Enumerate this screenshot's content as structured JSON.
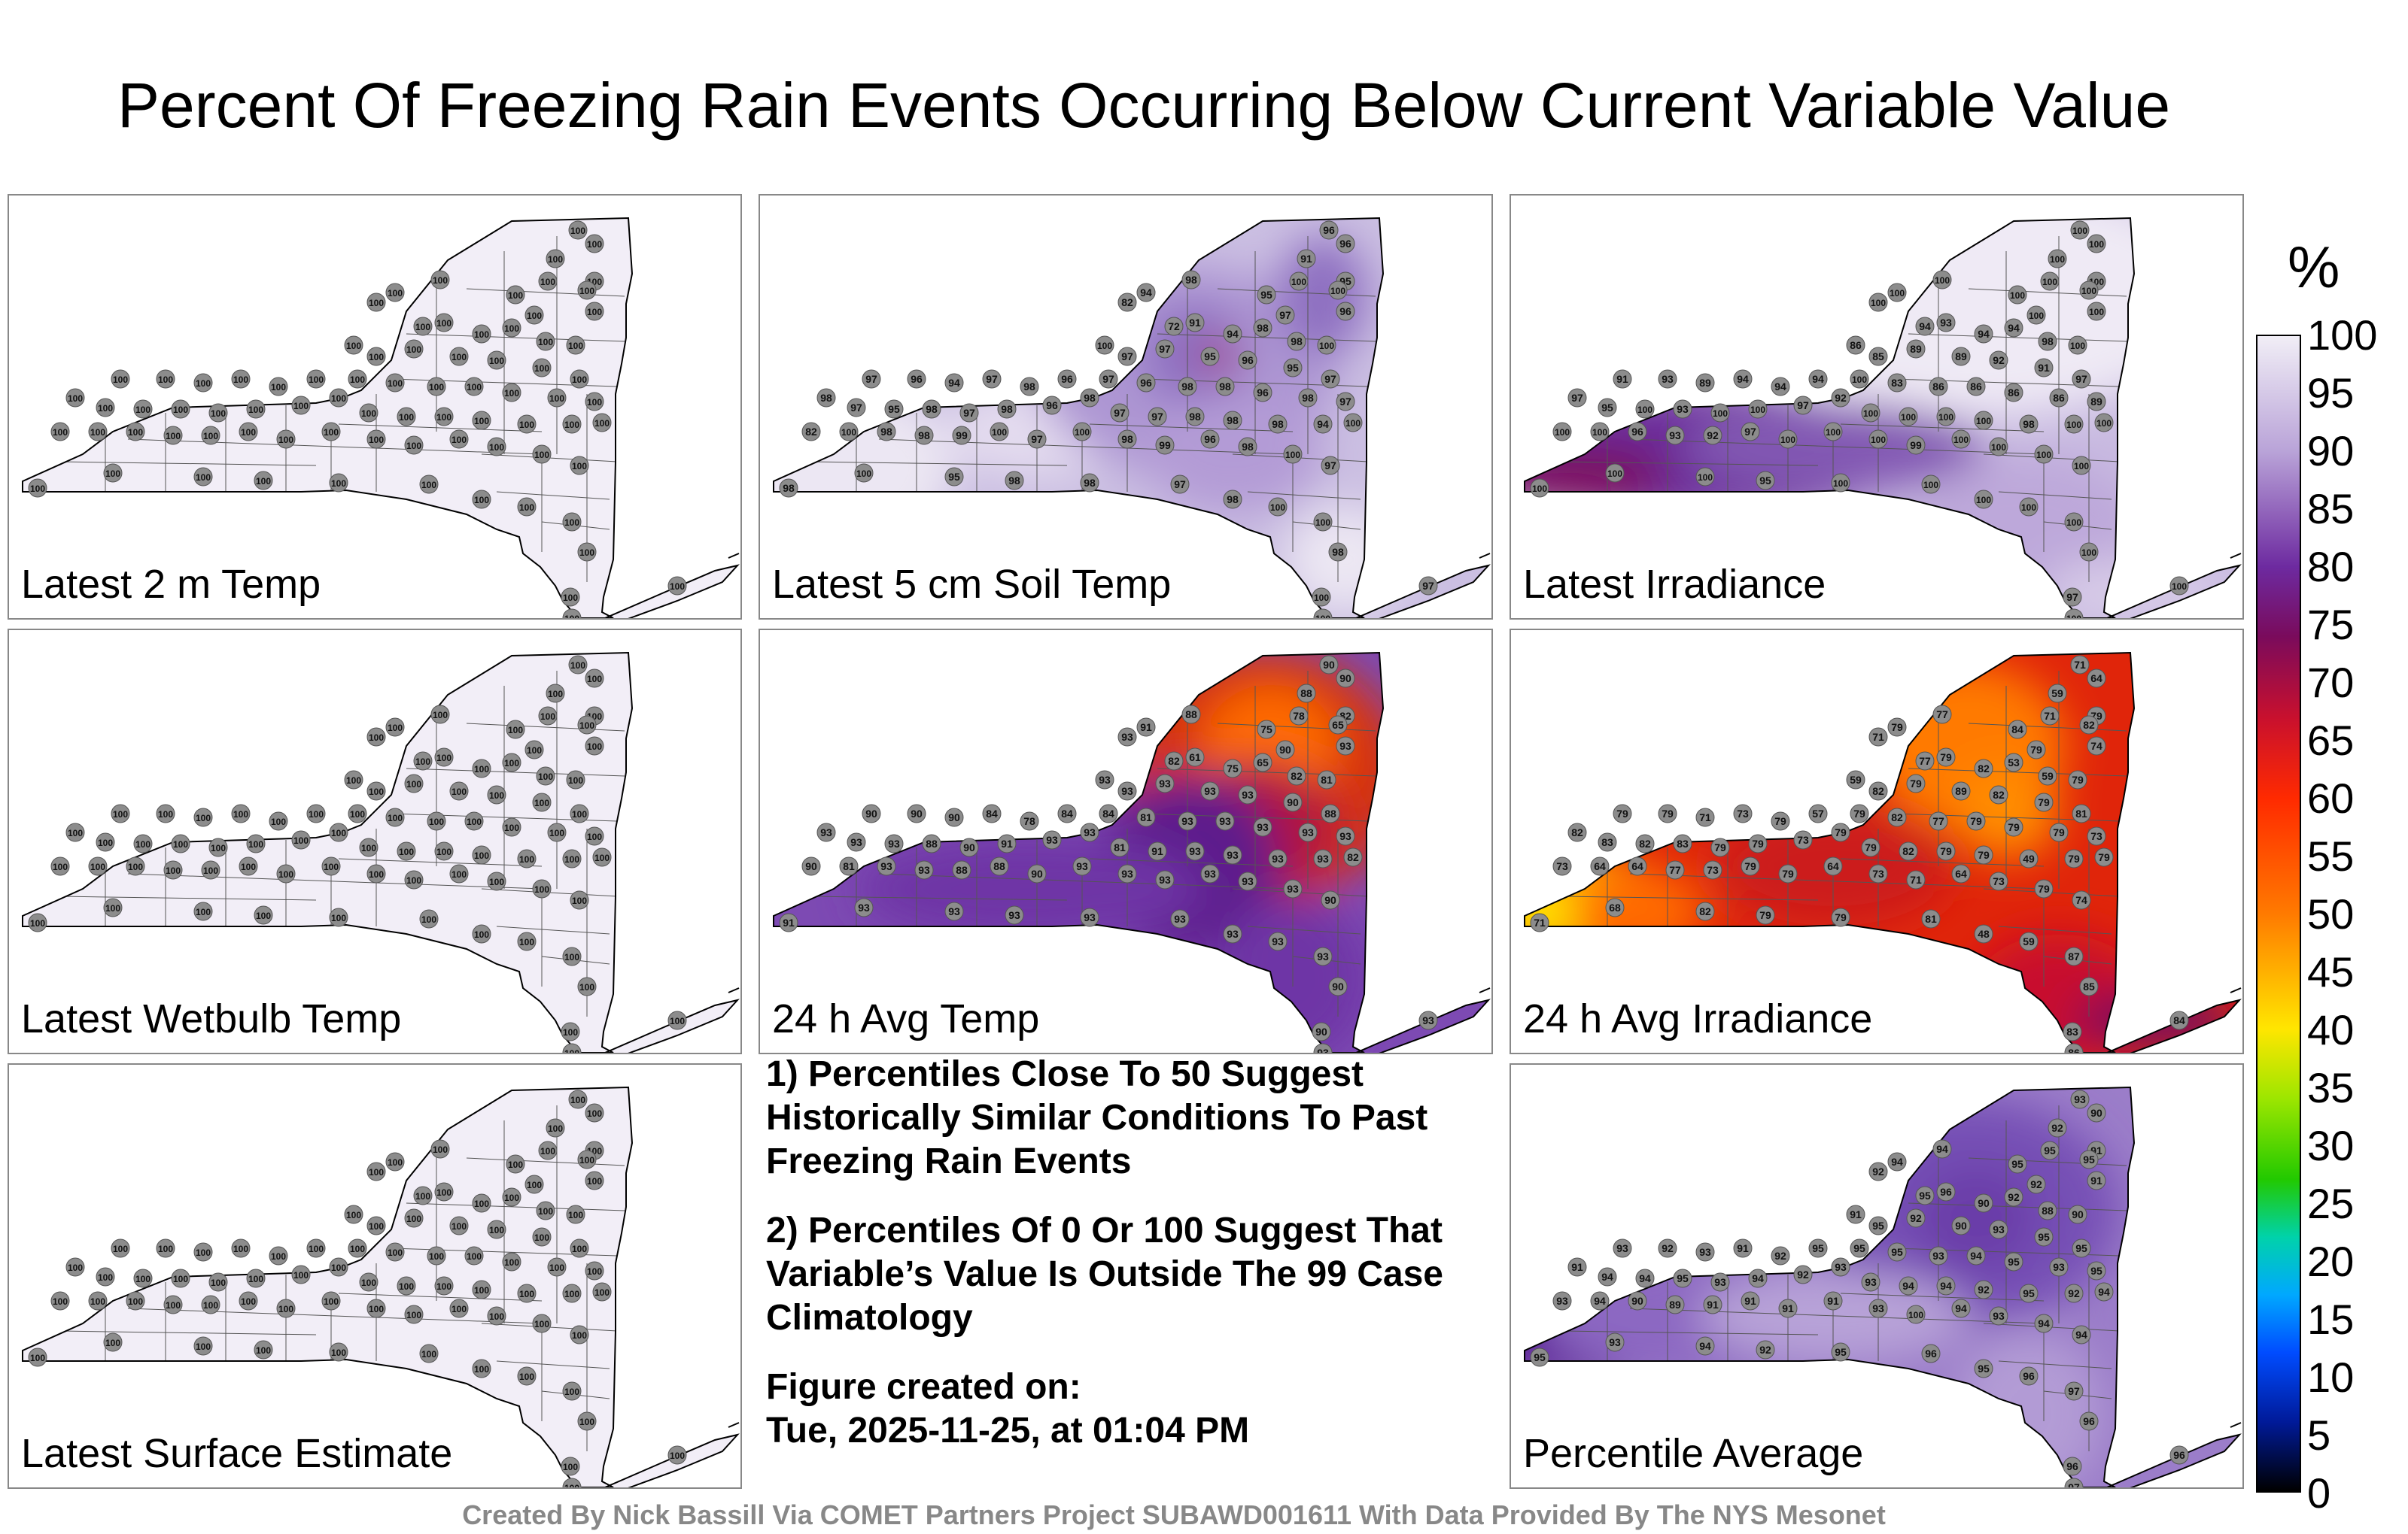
{
  "title": "Percent Of Freezing Rain Events Occurring Below Current Variable Value",
  "panels": [
    {
      "label": "Latest 2 m Temp",
      "scheme": "white",
      "values": [
        100,
        100,
        100,
        100,
        100,
        100,
        100,
        100,
        100,
        100,
        100,
        100,
        100,
        100,
        100,
        100,
        100,
        100,
        100,
        100,
        100,
        100,
        100,
        100,
        100,
        100,
        100,
        100,
        100,
        100,
        100,
        100,
        100,
        100,
        100,
        100,
        100,
        100,
        100,
        100,
        100,
        100,
        100,
        100,
        100,
        100,
        100,
        100,
        100,
        100,
        100,
        100,
        100,
        100,
        100,
        100,
        100,
        100,
        100,
        100,
        100,
        100,
        100,
        100,
        100,
        100,
        100,
        100,
        100,
        100,
        100,
        100,
        100,
        100,
        100,
        100,
        100,
        100,
        100,
        100
      ]
    },
    {
      "label": "Latest 5 cm Soil Temp",
      "scheme": "soil",
      "values": [
        96,
        96,
        91,
        95,
        82,
        94,
        98,
        95,
        100,
        100,
        96,
        97,
        72,
        91,
        94,
        98,
        98,
        100,
        100,
        97,
        97,
        95,
        96,
        95,
        97,
        96,
        97,
        96,
        98,
        98,
        96,
        98,
        97,
        97,
        96,
        94,
        97,
        98,
        96,
        98,
        98,
        97,
        95,
        98,
        97,
        98,
        97,
        97,
        98,
        98,
        98,
        94,
        100,
        82,
        100,
        98,
        98,
        99,
        100,
        97,
        100,
        98,
        99,
        96,
        98,
        100,
        97,
        98,
        100,
        95,
        98,
        98,
        97,
        98,
        100,
        100,
        98,
        100,
        100,
        97
      ]
    },
    {
      "label": "Latest Irradiance",
      "scheme": "irr",
      "values": [
        100,
        100,
        100,
        100,
        100,
        100,
        100,
        100,
        100,
        100,
        100,
        100,
        94,
        93,
        94,
        94,
        98,
        100,
        86,
        85,
        89,
        89,
        92,
        91,
        97,
        94,
        100,
        83,
        86,
        86,
        86,
        86,
        89,
        91,
        93,
        89,
        94,
        94,
        97,
        92,
        97,
        95,
        100,
        93,
        100,
        100,
        100,
        100,
        100,
        100,
        98,
        100,
        100,
        100,
        100,
        96,
        93,
        92,
        97,
        100,
        100,
        100,
        99,
        100,
        100,
        100,
        100,
        100,
        100,
        100,
        95,
        100,
        100,
        100,
        100,
        100,
        100,
        97,
        100,
        100
      ]
    },
    {
      "label": "Latest Wetbulb Temp",
      "scheme": "white",
      "values": [
        100,
        100,
        100,
        100,
        100,
        100,
        100,
        100,
        100,
        100,
        100,
        100,
        100,
        100,
        100,
        100,
        100,
        100,
        100,
        100,
        100,
        100,
        100,
        100,
        100,
        100,
        100,
        100,
        100,
        100,
        100,
        100,
        100,
        100,
        100,
        100,
        100,
        100,
        100,
        100,
        100,
        100,
        100,
        100,
        100,
        100,
        100,
        100,
        100,
        100,
        100,
        100,
        100,
        100,
        100,
        100,
        100,
        100,
        100,
        100,
        100,
        100,
        100,
        100,
        100,
        100,
        100,
        100,
        100,
        100,
        100,
        100,
        100,
        100,
        100,
        100,
        100,
        100,
        100,
        100
      ]
    },
    {
      "label": "24 h Avg Temp",
      "scheme": "avgt",
      "values": [
        90,
        90,
        88,
        82,
        93,
        91,
        88,
        75,
        78,
        65,
        93,
        90,
        82,
        61,
        75,
        65,
        82,
        81,
        93,
        93,
        93,
        93,
        93,
        90,
        88,
        84,
        84,
        81,
        93,
        93,
        93,
        93,
        93,
        90,
        90,
        90,
        84,
        78,
        93,
        93,
        93,
        93,
        93,
        88,
        90,
        91,
        81,
        91,
        93,
        93,
        93,
        93,
        82,
        90,
        81,
        93,
        93,
        88,
        88,
        90,
        93,
        93,
        93,
        93,
        93,
        93,
        90,
        91,
        93,
        93,
        93,
        93,
        93,
        93,
        93,
        93,
        90,
        90,
        93,
        93
      ]
    },
    {
      "label": "24 h Avg Irradiance",
      "scheme": "avgi",
      "values": [
        71,
        64,
        59,
        79,
        71,
        79,
        77,
        84,
        71,
        82,
        74,
        79,
        77,
        79,
        82,
        53,
        59,
        79,
        59,
        82,
        79,
        89,
        82,
        79,
        81,
        57,
        79,
        82,
        77,
        79,
        79,
        79,
        73,
        79,
        79,
        71,
        73,
        79,
        73,
        79,
        82,
        83,
        82,
        83,
        79,
        79,
        79,
        82,
        79,
        79,
        49,
        79,
        79,
        73,
        64,
        64,
        77,
        73,
        79,
        79,
        64,
        73,
        71,
        64,
        73,
        79,
        74,
        71,
        68,
        82,
        79,
        79,
        81,
        48,
        59,
        87,
        85,
        83,
        86,
        84
      ]
    },
    {
      "label": "Percentile Average",
      "scheme": "avg",
      "values": [
        93,
        90,
        92,
        91,
        92,
        94,
        94,
        95,
        95,
        95,
        91,
        92,
        95,
        96,
        90,
        92,
        88,
        90,
        91,
        95,
        92,
        90,
        93,
        95,
        95,
        95,
        95,
        95,
        93,
        94,
        95,
        93,
        95,
        93,
        92,
        93,
        91,
        92,
        92,
        93,
        91,
        94,
        94,
        95,
        93,
        94,
        93,
        94,
        94,
        92,
        95,
        92,
        94,
        93,
        94,
        90,
        89,
        91,
        91,
        91,
        91,
        93,
        100,
        94,
        93,
        94,
        94,
        95,
        93,
        94,
        92,
        95,
        96,
        95,
        96,
        97,
        96,
        96,
        97,
        96
      ]
    },
    {
      "label": "Latest Surface Estimate",
      "scheme": "white",
      "values": [
        100,
        100,
        100,
        100,
        100,
        100,
        100,
        100,
        100,
        100,
        100,
        100,
        100,
        100,
        100,
        100,
        100,
        100,
        100,
        100,
        100,
        100,
        100,
        100,
        100,
        100,
        100,
        100,
        100,
        100,
        100,
        100,
        100,
        100,
        100,
        100,
        100,
        100,
        100,
        100,
        100,
        100,
        100,
        100,
        100,
        100,
        100,
        100,
        100,
        100,
        100,
        100,
        100,
        100,
        100,
        100,
        100,
        100,
        100,
        100,
        100,
        100,
        100,
        100,
        100,
        100,
        100,
        100,
        100,
        100,
        100,
        100,
        100,
        100,
        100,
        100,
        100,
        100,
        100,
        100
      ]
    }
  ],
  "notes": {
    "n1": "1) Percentiles Close To 50 Suggest Historically Similar Conditions To Past Freezing Rain Events",
    "n2": "2) Percentiles Of 0 Or 100 Suggest That Variable’s Value Is Outside The 99 Case Climatology",
    "n3a": "Figure created on:",
    "n3b": "Tue, 2025-11-25, at 01:04 PM"
  },
  "colorbar": {
    "unit": "%",
    "ticks": [
      "100",
      "95",
      "90",
      "85",
      "80",
      "75",
      "70",
      "65",
      "60",
      "55",
      "50",
      "45",
      "40",
      "35",
      "30",
      "25",
      "20",
      "15",
      "10",
      "5",
      "0"
    ]
  },
  "footer": "Created By Nick Bassill Via COMET Partners Project SUBAWD001611 With Data Provided By The NYS Mesonet"
}
